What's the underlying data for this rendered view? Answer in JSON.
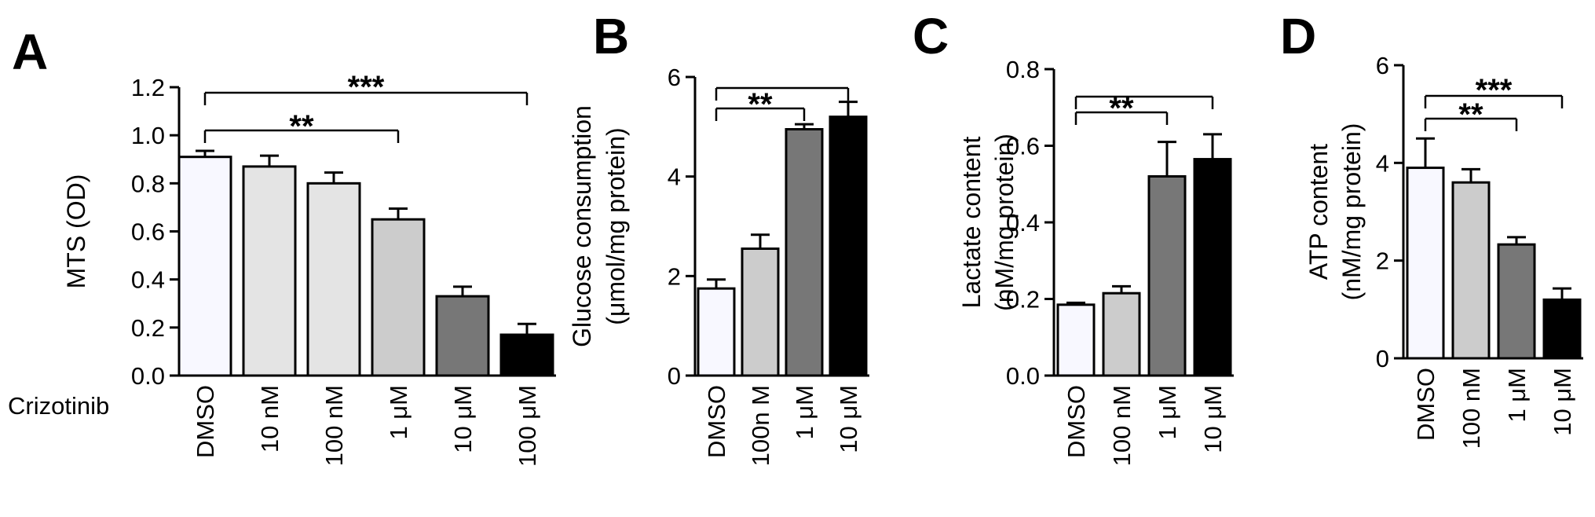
{
  "figure": {
    "x_annotation": "Crizotinib"
  },
  "chart_data": [
    {
      "panel": "A",
      "type": "bar",
      "ylabel": [
        "MTS (OD)"
      ],
      "yticks": [
        "0.0",
        "0.2",
        "0.4",
        "0.6",
        "0.8",
        "1.0",
        "1.2"
      ],
      "ylim": [
        0,
        1.2
      ],
      "categories": [
        "DMSO",
        "10 nM",
        "100 nM",
        "1 μM",
        "10 μM",
        "100 μM"
      ],
      "values": [
        0.91,
        0.87,
        0.8,
        0.65,
        0.33,
        0.17
      ],
      "errors": [
        0.025,
        0.045,
        0.045,
        0.045,
        0.04,
        0.045
      ],
      "colors": [
        "#f8f8ff",
        "#e4e4e4",
        "#e4e4e4",
        "#cccccc",
        "#777777",
        "#000000"
      ],
      "significance": [
        {
          "from": 0,
          "to": 3,
          "label": "**"
        },
        {
          "from": 0,
          "to": 5,
          "label": "***"
        }
      ]
    },
    {
      "panel": "B",
      "type": "bar",
      "ylabel": [
        "Glucose consumption",
        "(μmol/mg protein)"
      ],
      "yticks": [
        "0",
        "2",
        "4",
        "6"
      ],
      "ylim": [
        0,
        6
      ],
      "categories": [
        "DMSO",
        "100n M",
        "1  μM",
        "10 μM"
      ],
      "values": [
        1.75,
        2.55,
        4.95,
        5.2
      ],
      "errors": [
        0.18,
        0.28,
        0.1,
        0.3
      ],
      "colors": [
        "#f8f8ff",
        "#cccccc",
        "#777777",
        "#000000"
      ],
      "significance": [
        {
          "from": 0,
          "to": 2,
          "label": "**"
        },
        {
          "from": 0,
          "to": 3,
          "label": ""
        }
      ]
    },
    {
      "panel": "C",
      "type": "bar",
      "ylabel": [
        "Lactate content",
        "(nM/mg protein)"
      ],
      "yticks": [
        "0.0",
        "0.2",
        "0.4",
        "0.6",
        "0.8"
      ],
      "ylim": [
        0,
        0.8
      ],
      "categories": [
        "DMSO",
        "100 nM",
        "1 μM",
        "10 μM"
      ],
      "values": [
        0.185,
        0.215,
        0.52,
        0.565
      ],
      "errors": [
        0.005,
        0.018,
        0.09,
        0.065
      ],
      "colors": [
        "#f8f8ff",
        "#cccccc",
        "#777777",
        "#000000"
      ],
      "significance": [
        {
          "from": 0,
          "to": 2,
          "label": "**"
        },
        {
          "from": 0,
          "to": 3,
          "label": ""
        }
      ]
    },
    {
      "panel": "D",
      "type": "bar",
      "ylabel": [
        "ATP content",
        "(nM/mg protein)"
      ],
      "yticks": [
        "0",
        "2",
        "4",
        "6"
      ],
      "ylim": [
        0,
        6
      ],
      "categories": [
        "DMSO",
        "100 nM",
        "1 μM",
        "10 μM"
      ],
      "values": [
        3.9,
        3.6,
        2.33,
        1.2
      ],
      "errors": [
        0.6,
        0.27,
        0.15,
        0.23
      ],
      "colors": [
        "#f8f8ff",
        "#cccccc",
        "#777777",
        "#000000"
      ],
      "significance": [
        {
          "from": 0,
          "to": 2,
          "label": "**"
        },
        {
          "from": 0,
          "to": 3,
          "label": "***"
        }
      ]
    }
  ]
}
